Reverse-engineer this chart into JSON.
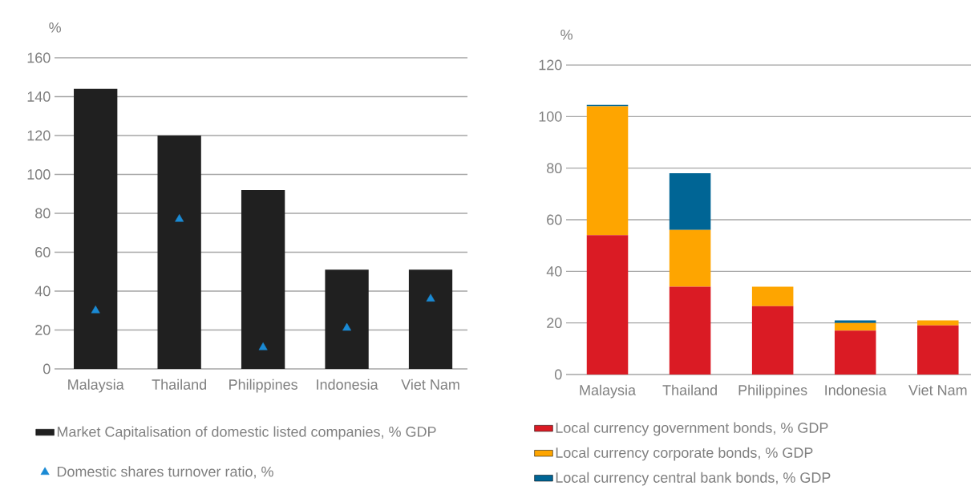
{
  "chart_data": [
    {
      "type": "bar",
      "ylabel": "%",
      "categories": [
        "Malaysia",
        "Thailand",
        "Philippines",
        "Indonesia",
        "Viet Nam"
      ],
      "ylim": [
        0,
        160
      ],
      "yticks": [
        0,
        20,
        40,
        60,
        80,
        100,
        120,
        140,
        160
      ],
      "grid": "y",
      "legend": "bottom",
      "series": [
        {
          "name": "Market Capitalisation of domestic listed companies, % GDP",
          "color": "#202020",
          "values": [
            144,
            120,
            92,
            51,
            51
          ]
        },
        {
          "name": "Domestic shares turnover ratio, %",
          "type": "scatter",
          "marker": "triangle",
          "color": "#1a8ad4",
          "values": [
            30,
            77,
            11,
            21,
            36
          ]
        }
      ]
    },
    {
      "type": "bar",
      "stacked": true,
      "ylabel": "%",
      "categories": [
        "Malaysia",
        "Thailand",
        "Philippines",
        "Indonesia",
        "Viet Nam"
      ],
      "ylim": [
        0,
        120
      ],
      "yticks": [
        0,
        20,
        40,
        60,
        80,
        100,
        120
      ],
      "grid": "y",
      "legend": "bottom",
      "series": [
        {
          "name": "Local currency government bonds, % GDP",
          "color": "#da1b24",
          "values": [
            54,
            34,
            26.5,
            17,
            19
          ]
        },
        {
          "name": "Local currency corporate bonds, % GDP",
          "color": "#fea500",
          "values": [
            50,
            22,
            7.5,
            3,
            2
          ]
        },
        {
          "name": "Local currency central bank bonds, % GDP",
          "color": "#006595",
          "values": [
            0.5,
            22,
            null,
            1,
            null
          ]
        }
      ]
    }
  ]
}
